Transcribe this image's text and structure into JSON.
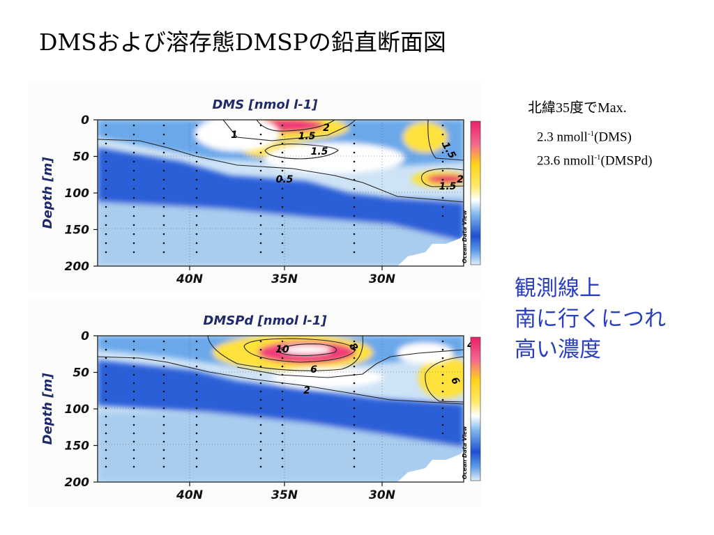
{
  "slide": {
    "title": "DMSおよび溶存態DMSPの鉛直断面図",
    "notes": {
      "heading": "北緯35度でMax.",
      "dms_value": "2.3 nmoll",
      "dms_sup": "-1",
      "dms_tag": "(DMS)",
      "dmspd_value": "23.6 nmoll",
      "dmspd_sup": "-1",
      "dmspd_tag": "(DMSPd)"
    },
    "blue_note": [
      "観測線上",
      "南に行くにつれ",
      "高い濃度"
    ]
  },
  "chart_data": [
    {
      "type": "heatmap",
      "title": "DMS [nmol l-1]",
      "ylabel": "Depth [m]",
      "xlabel": "",
      "x_ticks": [
        "40N",
        "35N",
        "30N"
      ],
      "y_ticks": [
        "0",
        "50",
        "100",
        "150",
        "200"
      ],
      "y_range": [
        0,
        200
      ],
      "y_inverted": true,
      "colorbar_ticks": [
        "2",
        "1.5",
        "1",
        "0.5",
        "0"
      ],
      "colorbar_range": [
        0,
        2.3
      ],
      "contour_labels": [
        "1",
        "1.5",
        "2",
        "1.5",
        "0.5",
        "1.5",
        "1.5",
        "2"
      ],
      "credit": "Ocean Data View",
      "colors": {
        "high": "#e8206a",
        "mid": "#ffe23a",
        "low": "#1f4fcf",
        "min": "#dfeefa"
      }
    },
    {
      "type": "heatmap",
      "title": "DMSPd [nmol l-1]",
      "ylabel": "Depth [m]",
      "xlabel": "",
      "x_ticks": [
        "40N",
        "35N",
        "30N"
      ],
      "y_ticks": [
        "0",
        "50",
        "100",
        "150",
        "200"
      ],
      "y_range": [
        0,
        200
      ],
      "y_inverted": true,
      "colorbar_ticks": [
        "10",
        "8",
        "6",
        "4",
        "2",
        "0"
      ],
      "colorbar_range": [
        0,
        10
      ],
      "contour_labels": [
        "10",
        "8",
        "6",
        "2",
        "4",
        "6"
      ],
      "credit": "Ocean Data View",
      "colors": {
        "high": "#e8206a",
        "mid": "#ffe23a",
        "low": "#1f4fcf",
        "min": "#dfeefa"
      }
    }
  ]
}
